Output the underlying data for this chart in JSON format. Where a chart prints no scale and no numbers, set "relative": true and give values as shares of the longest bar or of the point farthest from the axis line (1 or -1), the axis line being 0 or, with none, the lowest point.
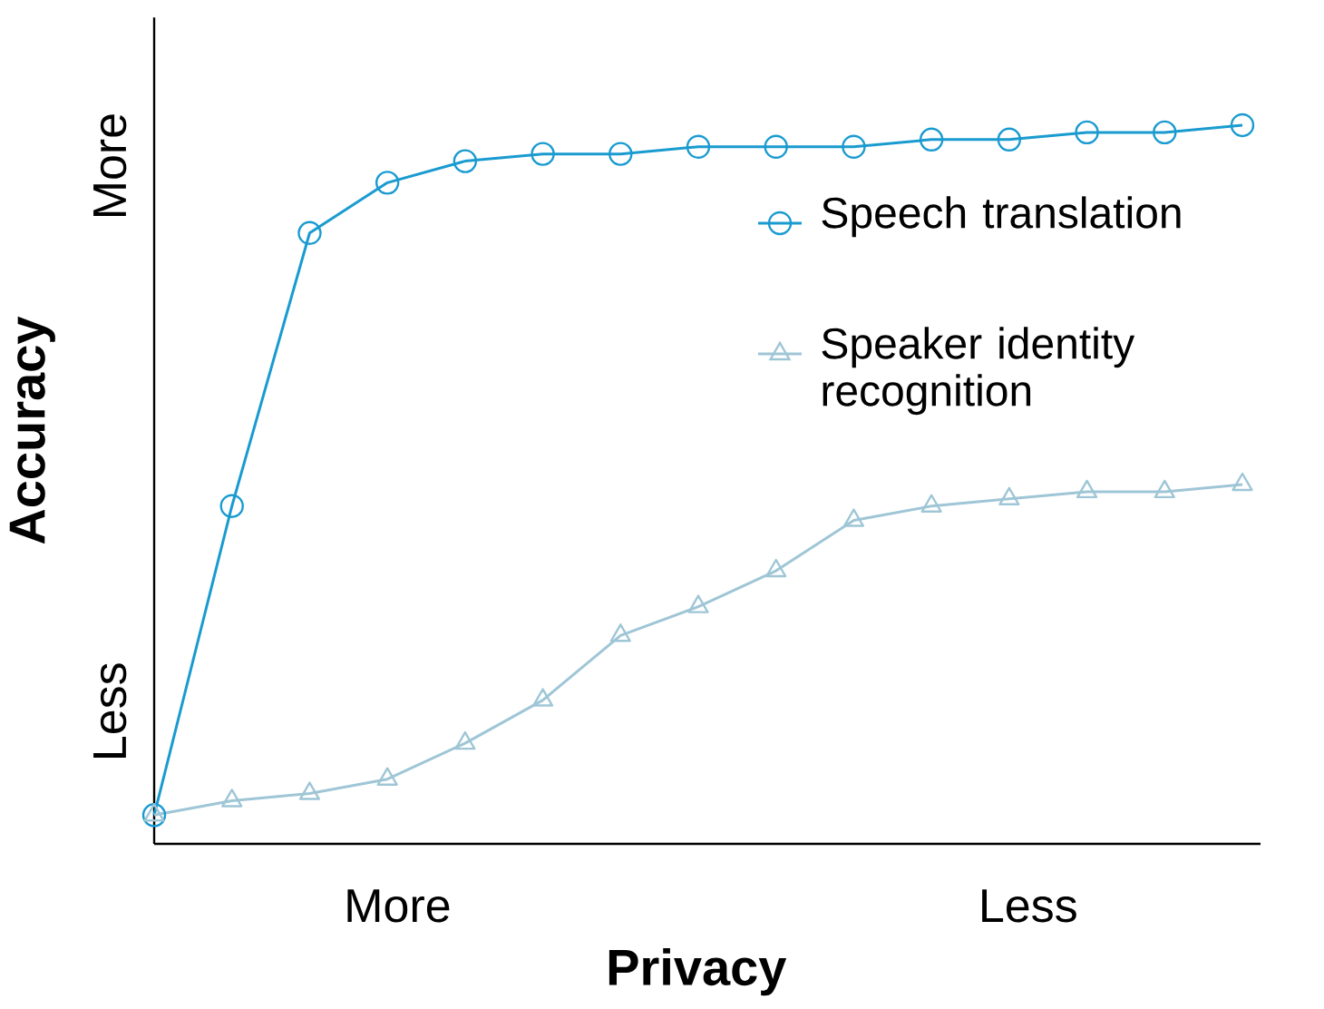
{
  "chart_data": {
    "type": "line",
    "relative": true,
    "xlabel": "Privacy",
    "ylabel": "Accuracy",
    "categories": [
      null,
      null,
      null,
      null,
      null,
      null,
      null,
      null,
      null,
      null,
      null,
      null,
      null,
      null,
      null
    ],
    "annotations": [
      "More",
      "Less",
      "More",
      "Less"
    ],
    "legend": "right",
    "series": [
      {
        "name": "Speech translation",
        "color": "#1a9bd0",
        "marker": "circle",
        "values": [
          0.04,
          0.47,
          0.85,
          0.92,
          0.95,
          0.96,
          0.96,
          0.97,
          0.97,
          0.97,
          0.98,
          0.98,
          0.99,
          0.99,
          1
        ]
      },
      {
        "name": "Speaker identity recognition",
        "color": "#9fc6d6",
        "marker": "triangle",
        "values": [
          0.04,
          0.06,
          0.07,
          0.09,
          0.14,
          0.2,
          0.29,
          0.33,
          0.38,
          0.45,
          0.47,
          0.48,
          0.49,
          0.49,
          0.5
        ]
      }
    ]
  }
}
